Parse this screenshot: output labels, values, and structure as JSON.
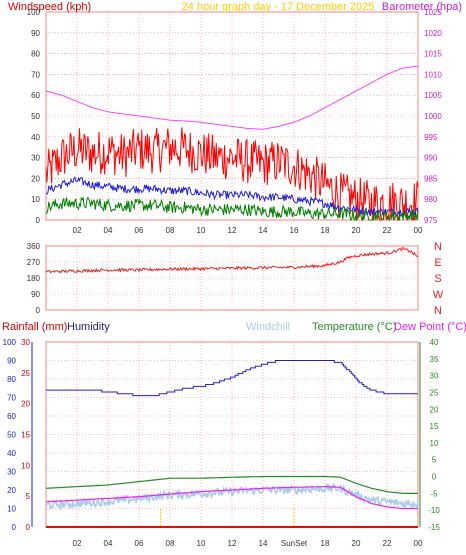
{
  "header": {
    "left_label": "Windspeed (kph)",
    "center_label": "24 hour graph day - 17 December 2025",
    "right_label": "Barometer (hpa)"
  },
  "bottom_header": {
    "rainfall_label": "Rainfall (mm)",
    "humidity_label": "Humidity",
    "windchill_label": "Windchill",
    "temperature_label": "Temperature (°C)",
    "dewpoint_label": "Dew Point (°C)"
  },
  "sun_markers": {
    "sunrise": 7.4,
    "sunset": 16.0,
    "sunset_label": "SunSet"
  },
  "colors": {
    "windspeed": "#ff0000",
    "wind_avg": "#2020dd",
    "wind_low": "#008000",
    "barometer": "#ff44ff",
    "winddir": "#ee2222",
    "humidity": "#2222cc",
    "temperature": "#2a8a2a",
    "dewpoint": "#ee22ee",
    "windchill": "#aaccee",
    "rain": "#ff0000",
    "grid": "#ff8080",
    "sun": "#ffcc00"
  },
  "chart_data": [
    {
      "type": "line",
      "panel": "wind_barometer",
      "x_ticks": [
        "02",
        "04",
        "06",
        "08",
        "10",
        "12",
        "14",
        "16",
        "18",
        "20",
        "22",
        "00"
      ],
      "x_tick_hours": [
        2,
        4,
        6,
        8,
        10,
        12,
        14,
        16,
        18,
        20,
        22,
        24
      ],
      "xlim": [
        0,
        24
      ],
      "y_left_ticks": [
        0,
        10,
        20,
        30,
        40,
        50,
        60,
        70,
        80,
        90,
        100
      ],
      "ylim_left": [
        0,
        100
      ],
      "y_right_ticks": [
        975,
        980,
        985,
        990,
        995,
        1000,
        1005,
        1010,
        1015,
        1020,
        1025
      ],
      "ylim_right": [
        975,
        1025
      ],
      "series": [
        {
          "name": "Windspeed (kph)",
          "axis": "left",
          "style": "noisy",
          "x": [
            0,
            1,
            2,
            3,
            4,
            5,
            6,
            7,
            8,
            9,
            10,
            11,
            12,
            13,
            14,
            15,
            16,
            17,
            18,
            19,
            20,
            21,
            22,
            23,
            24
          ],
          "y": [
            22,
            30,
            34,
            32,
            33,
            31,
            34,
            33,
            35,
            34,
            32,
            30,
            30,
            28,
            27,
            28,
            26,
            22,
            17,
            12,
            10,
            8,
            9,
            8,
            9
          ],
          "amp": 11
        },
        {
          "name": "Wind average",
          "axis": "left",
          "style": "noisy",
          "x": [
            0,
            1,
            2,
            3,
            4,
            5,
            6,
            7,
            8,
            9,
            10,
            11,
            12,
            13,
            14,
            15,
            16,
            17,
            18,
            19,
            20,
            21,
            22,
            23,
            24
          ],
          "y": [
            14,
            17,
            19,
            17,
            16,
            15,
            15,
            15,
            14,
            14,
            13,
            12,
            12,
            12,
            11,
            11,
            10,
            9,
            8,
            6,
            5,
            4,
            4,
            4,
            4
          ],
          "amp": 2
        },
        {
          "name": "Wind low",
          "axis": "left",
          "style": "noisy",
          "x": [
            0,
            1,
            2,
            3,
            4,
            5,
            6,
            7,
            8,
            9,
            10,
            11,
            12,
            13,
            14,
            15,
            16,
            17,
            18,
            19,
            20,
            21,
            22,
            23,
            24
          ],
          "y": [
            6,
            8,
            8,
            8,
            7,
            7,
            7,
            7,
            6,
            6,
            5,
            5,
            5,
            5,
            4,
            4,
            4,
            3,
            3,
            3,
            2,
            2,
            2,
            2,
            2
          ],
          "amp": 3
        },
        {
          "name": "Barometer (hpa)",
          "axis": "right",
          "style": "smooth",
          "x": [
            0,
            1,
            2,
            3,
            4,
            5,
            6,
            7,
            8,
            9,
            10,
            11,
            12,
            13,
            14,
            15,
            16,
            17,
            18,
            19,
            20,
            21,
            22,
            23,
            24
          ],
          "y": [
            1006,
            1005,
            1003.5,
            1002,
            1001,
            1000.5,
            1000,
            999.5,
            999,
            998.8,
            998.5,
            998,
            997.5,
            997,
            996.8,
            997.5,
            998.5,
            1000,
            1002,
            1004,
            1006,
            1008,
            1010,
            1011.5,
            1012
          ]
        }
      ]
    },
    {
      "type": "line",
      "panel": "wind_direction",
      "xlim": [
        0,
        24
      ],
      "y_ticks": [
        0,
        90,
        180,
        270,
        360
      ],
      "ylim": [
        0,
        360
      ],
      "direction_labels": [
        "N",
        "W",
        "S",
        "E",
        "N"
      ],
      "series": [
        {
          "name": "Wind direction",
          "style": "noisy",
          "x": [
            0,
            2,
            4,
            6,
            8,
            10,
            12,
            14,
            16,
            18,
            19,
            19.5,
            20,
            21,
            22,
            22.5,
            23,
            23.5,
            24
          ],
          "y": [
            215,
            220,
            225,
            225,
            230,
            232,
            235,
            238,
            240,
            250,
            270,
            295,
            305,
            315,
            320,
            330,
            345,
            330,
            300
          ],
          "amp": 8
        }
      ]
    },
    {
      "type": "line",
      "panel": "temperature_humidity",
      "xlim": [
        0,
        24
      ],
      "y_humidity_ticks": [
        0,
        10,
        20,
        30,
        40,
        50,
        60,
        70,
        80,
        90,
        100
      ],
      "ylim_humidity": [
        0,
        100
      ],
      "y_rain_ticks": [
        0,
        5,
        10,
        15,
        20,
        25,
        30
      ],
      "ylim_rain": [
        0,
        30
      ],
      "y_temp_ticks": [
        -15,
        -10,
        -5,
        0,
        5,
        10,
        15,
        20,
        25,
        30,
        35,
        40
      ],
      "ylim_temp": [
        -15,
        40
      ],
      "series": [
        {
          "name": "Humidity",
          "axis": "humidity",
          "style": "step",
          "x": [
            0,
            1,
            2,
            3,
            4,
            5,
            6,
            7,
            8,
            9,
            10,
            11,
            12,
            13,
            14,
            15,
            16,
            17,
            18,
            19,
            20,
            20.5,
            21,
            22,
            23,
            24
          ],
          "y": [
            74,
            74,
            74,
            74,
            73,
            72,
            71,
            71,
            73,
            75,
            76,
            78,
            81,
            85,
            88,
            90,
            90,
            90,
            90,
            89,
            80,
            76,
            74,
            72,
            72,
            72
          ]
        },
        {
          "name": "Temperature (°C)",
          "axis": "temp",
          "style": "smooth",
          "x": [
            0,
            2,
            4,
            6,
            8,
            10,
            12,
            14,
            16,
            18,
            19,
            20,
            21,
            22,
            23,
            24
          ],
          "y": [
            -3.5,
            -3.0,
            -2.5,
            -1.5,
            -0.5,
            -0.5,
            -0.2,
            0,
            0,
            0,
            -0.2,
            -2.0,
            -3.5,
            -4.5,
            -5.0,
            -5.0
          ]
        },
        {
          "name": "Dew Point (°C)",
          "axis": "temp",
          "style": "smooth",
          "x": [
            0,
            2,
            4,
            6,
            8,
            10,
            12,
            14,
            16,
            18,
            19,
            20,
            21,
            22,
            23,
            24
          ],
          "y": [
            -7.5,
            -7.0,
            -6.5,
            -6.0,
            -5.2,
            -4.5,
            -4.0,
            -3.5,
            -3.2,
            -3.0,
            -3.2,
            -6.0,
            -8.0,
            -9.0,
            -9.5,
            -9.5
          ]
        },
        {
          "name": "Windchill",
          "axis": "temp",
          "style": "noisy",
          "x": [
            0,
            2,
            4,
            6,
            8,
            10,
            12,
            14,
            16,
            18,
            19,
            20,
            21,
            22,
            23,
            24
          ],
          "y": [
            -8.5,
            -8.0,
            -7.5,
            -6.5,
            -5.5,
            -5.0,
            -4.5,
            -4.0,
            -4.0,
            -3.5,
            -3.5,
            -5.5,
            -7.0,
            -7.5,
            -8.0,
            -8.0
          ],
          "amp": 1.2
        },
        {
          "name": "Rainfall (mm)",
          "axis": "rain",
          "style": "smooth",
          "x": [
            0,
            24
          ],
          "y": [
            0,
            0
          ]
        }
      ]
    }
  ]
}
